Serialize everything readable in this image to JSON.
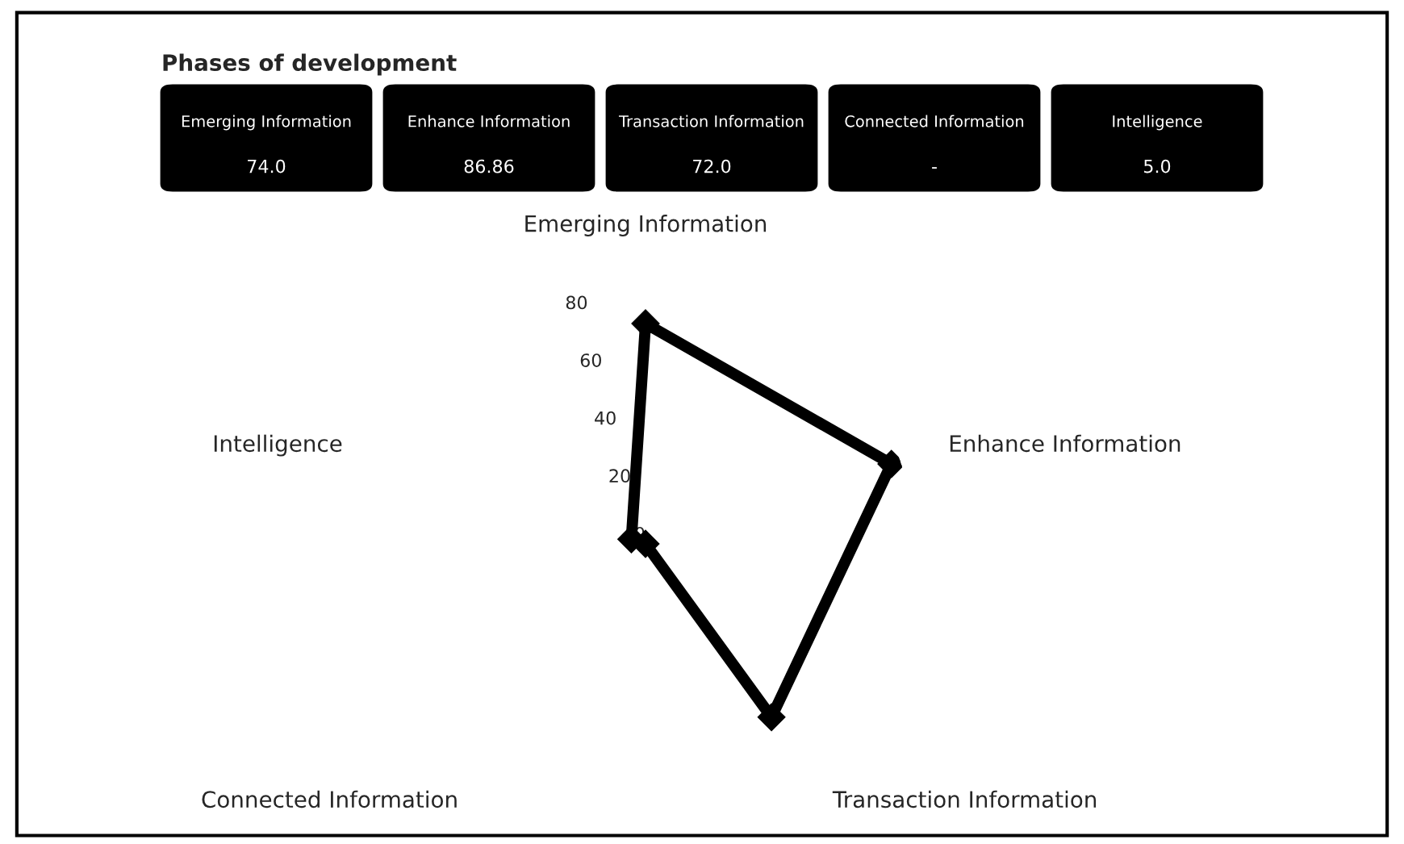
{
  "chart_data": {
    "type": "radar",
    "title": "Phases of development",
    "categories": [
      "Emerging Information",
      "Enhance Information",
      "Transaction Information",
      "Connected Information",
      "Intelligence"
    ],
    "series": [
      {
        "color": "#000000",
        "values": [
          74.0,
          86.86,
          72.0,
          0,
          5.0
        ]
      }
    ],
    "annotations": [
      "74.0",
      "86.86",
      "72.0",
      "-",
      "5.0"
    ],
    "ylim": [
      0,
      90
    ],
    "yticks": [
      0,
      20,
      40,
      60,
      80
    ],
    "grid": false,
    "marker": "diamond",
    "line_style": "solid"
  }
}
